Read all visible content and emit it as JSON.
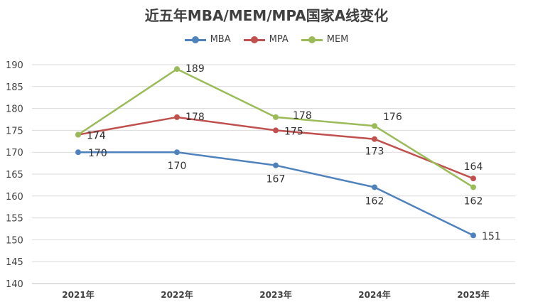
{
  "chart_data": {
    "type": "line",
    "title": "近五年MBA/MEM/MPA国家A线变化",
    "categories": [
      "2021年",
      "2022年",
      "2023年",
      "2024年",
      "2025年"
    ],
    "series": [
      {
        "name": "MBA",
        "color": "#4f81bd",
        "values": [
          170,
          170,
          167,
          162,
          151
        ]
      },
      {
        "name": "MPA",
        "color": "#c0504d",
        "values": [
          174,
          178,
          175,
          173,
          164
        ]
      },
      {
        "name": "MEM",
        "color": "#9bbb59",
        "values": [
          174,
          189,
          178,
          176,
          162
        ]
      }
    ],
    "ylim": [
      140,
      190
    ],
    "yticks": [
      140,
      145,
      150,
      155,
      160,
      165,
      170,
      175,
      180,
      185,
      190
    ],
    "grid": true,
    "legend_position": "top-center"
  }
}
